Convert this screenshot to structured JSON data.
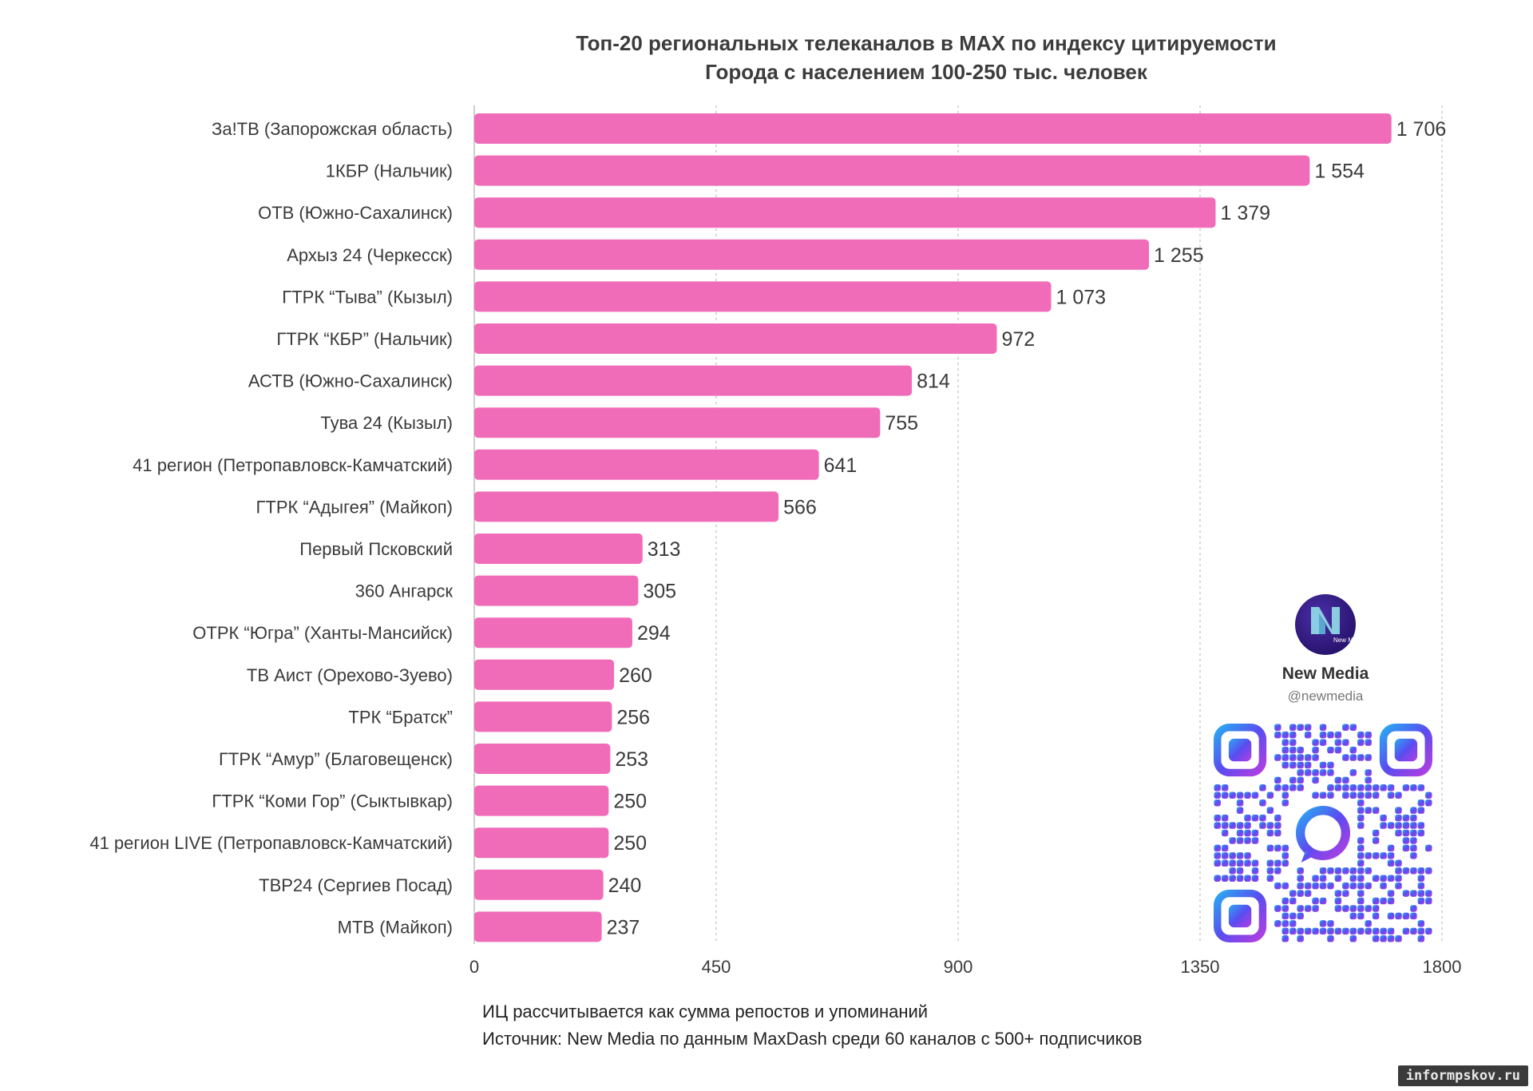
{
  "chart_data": {
    "type": "bar",
    "orientation": "horizontal",
    "title_lines": [
      "Топ-20 региональных телеканалов в MAX по индексу цитируемости",
      "Города с населением 100-250 тыс. человек"
    ],
    "categories": [
      "За!ТВ (Запорожская область)",
      "1КБР (Нальчик)",
      "ОТВ (Южно-Сахалинск)",
      "Архыз 24 (Черкесск)",
      "ГТРК “Тыва” (Кызыл)",
      "ГТРК “КБР” (Нальчик)",
      "АСТВ (Южно-Сахалинск)",
      "Тува 24 (Кызыл)",
      "41 регион (Петропавловск-Камчатский)",
      "ГТРК “Адыгея” (Майкоп)",
      "Первый Псковский",
      "360 Ангарск",
      "ОТРК “Югра” (Ханты-Мансийск)",
      "ТВ Аист (Орехово-Зуево)",
      "ТРК “Братск”",
      "ГТРК “Амур” (Благовещенск)",
      "ГТРК “Коми Гор” (Сыктывкар)",
      "41 регион LIVE (Петропавловск-Камчатский)",
      "ТВР24 (Сергиев Посад)",
      "МТВ (Майкоп)"
    ],
    "values": [
      1706,
      1554,
      1379,
      1255,
      1073,
      972,
      814,
      755,
      641,
      566,
      313,
      305,
      294,
      260,
      256,
      253,
      250,
      250,
      240,
      237
    ],
    "value_labels": [
      "1 706",
      "1 554",
      "1 379",
      "1 255",
      "1 073",
      "972",
      "814",
      "755",
      "641",
      "566",
      "313",
      "305",
      "294",
      "260",
      "256",
      "253",
      "250",
      "250",
      "240",
      "237"
    ],
    "xlim": [
      0,
      1800
    ],
    "xticks": [
      0,
      450,
      900,
      1350,
      1800
    ],
    "xtick_labels": [
      "0",
      "450",
      "900",
      "1350",
      "1800"
    ],
    "grid": true,
    "bar_color": "#f06cb8"
  },
  "notes": [
    "ИЦ рассчитывается как сумма репостов и упоминаний",
    "Источник: New Media по данным MaxDash среди 60 каналов с 500+ подписчиков"
  ],
  "brand": {
    "name": "New Media",
    "handle": "@newmedia",
    "logo_text": "New Media",
    "logo_icon": "new-media-logo-icon"
  },
  "qr_icon": "qr-code-icon",
  "watermark": "informpskov.ru"
}
